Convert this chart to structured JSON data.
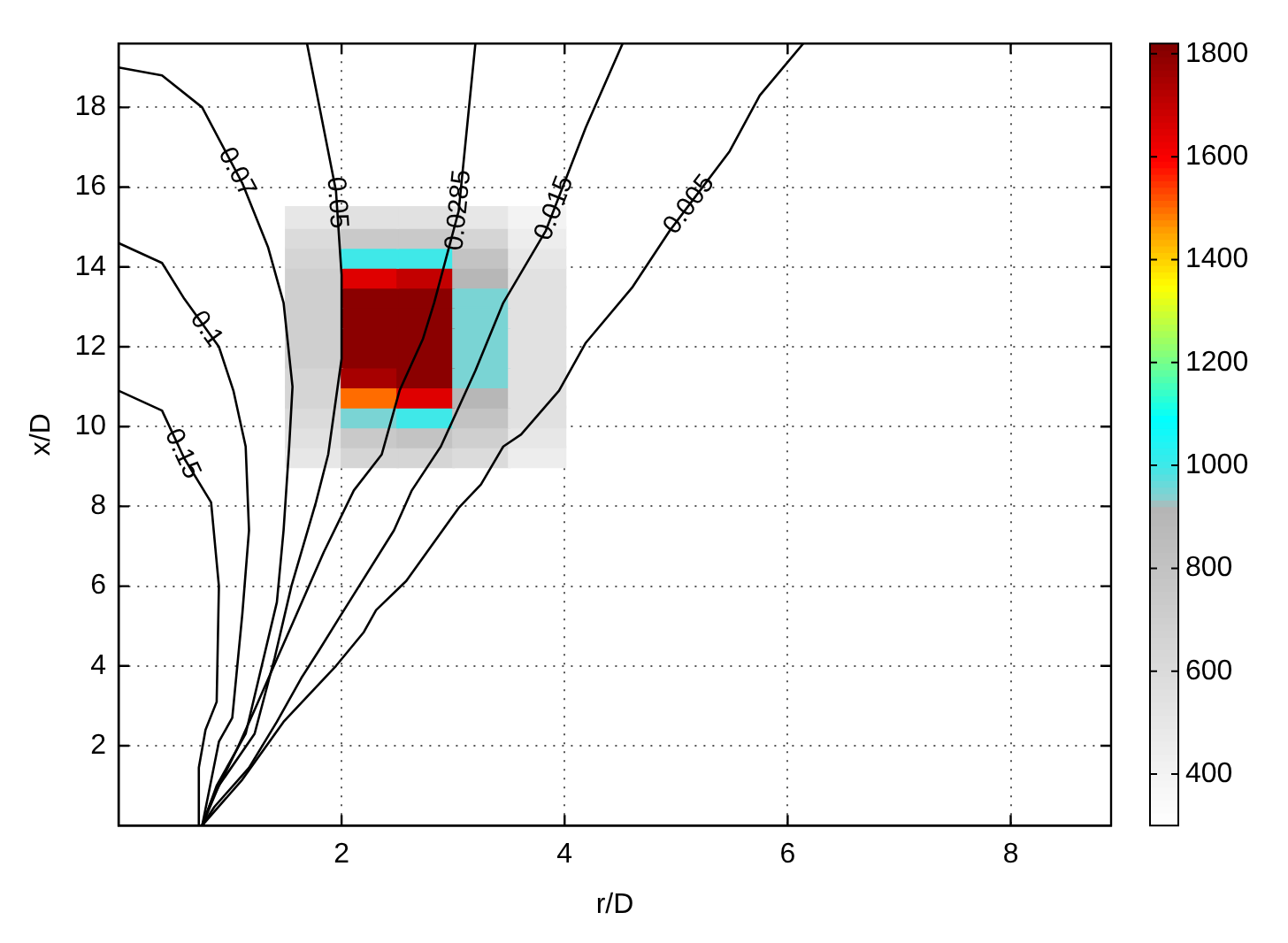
{
  "chart_data": {
    "type": "line",
    "xlabel": "r/D",
    "ylabel": "x/D",
    "xlim": [
      0,
      8.9
    ],
    "xticks": [
      2,
      4,
      6,
      8
    ],
    "ylim": [
      0,
      19.6
    ],
    "yticks": [
      2,
      4,
      6,
      8,
      10,
      12,
      14,
      16,
      18
    ],
    "clim": [
      300,
      1820
    ],
    "cticks": [
      400,
      600,
      800,
      1000,
      1200,
      1400,
      1600,
      1800
    ],
    "grid": true,
    "line_style": "solid",
    "marker": "none",
    "series": [
      {
        "type": "scatter",
        "marker": "square",
        "x": [
          1.75,
          2.25,
          2.75,
          3.25,
          3.75,
          1.75,
          2.25,
          2.75,
          3.25,
          3.75,
          1.75,
          2.25,
          2.75,
          3.25,
          3.75,
          1.75,
          2.25,
          2.75,
          3.25,
          3.75,
          1.75,
          2.25,
          2.75,
          3.25,
          3.75,
          1.75,
          2.25,
          2.75,
          3.25,
          3.75,
          1.75,
          2.25,
          2.75,
          3.25,
          3.75,
          1.75,
          2.25,
          2.75,
          3.25,
          3.75,
          1.75,
          2.25,
          2.75,
          3.25,
          3.75,
          1.75,
          2.25,
          2.75,
          3.25,
          3.75,
          1.75,
          2.25,
          2.75,
          3.25,
          3.75,
          1.75,
          2.25,
          2.75,
          3.25,
          3.75,
          1.75,
          2.25,
          2.75,
          3.25,
          3.75
        ],
        "values": [
          9.25,
          9.25,
          9.25,
          9.25,
          9.25,
          9.75,
          9.75,
          9.75,
          9.75,
          9.75,
          10.25,
          10.25,
          10.25,
          10.25,
          10.25,
          10.75,
          10.75,
          10.75,
          10.75,
          10.75,
          11.25,
          11.25,
          11.25,
          11.25,
          11.25,
          11.75,
          11.75,
          11.75,
          11.75,
          11.75,
          12.25,
          12.25,
          12.25,
          12.25,
          12.25,
          12.75,
          12.75,
          12.75,
          12.75,
          12.75,
          13.25,
          13.25,
          13.25,
          13.25,
          13.25,
          13.75,
          13.75,
          13.75,
          13.75,
          13.75,
          14.25,
          14.25,
          14.25,
          14.25,
          14.25,
          14.75,
          14.75,
          14.75,
          14.75,
          14.75,
          15.25,
          15.25,
          15.25,
          15.25,
          15.25
        ],
        "colors": [
          "#e7e7e7",
          "#d5d5d5",
          "#d5d5d5",
          "#dbdbdb",
          "#ededed",
          "#e1e1e1",
          "#c9c9c9",
          "#c3c3c3",
          "#cfcfcf",
          "#e7e7e7",
          "#dbdbdb",
          "#7ad4d4",
          "#3fe8e8",
          "#c3c3c3",
          "#e1e1e1",
          "#d5d5d5",
          "#ff6c00",
          "#df0000",
          "#b7b7b7",
          "#e1e1e1",
          "#d5d5d5",
          "#a70000",
          "#8b0000",
          "#7ad4d4",
          "#e1e1e1",
          "#cfcfcf",
          "#8b0000",
          "#8b0000",
          "#7ad4d4",
          "#e1e1e1",
          "#cfcfcf",
          "#8b0000",
          "#8b0000",
          "#7ad4d4",
          "#e1e1e1",
          "#cfcfcf",
          "#8b0000",
          "#8b0000",
          "#7ad4d4",
          "#e1e1e1",
          "#cfcfcf",
          "#8b0000",
          "#8b0000",
          "#7ad4d4",
          "#e1e1e1",
          "#cfcfcf",
          "#df0000",
          "#c30000",
          "#b7b7b7",
          "#e1e1e1",
          "#d5d5d5",
          "#3fe8e8",
          "#3fe8e8",
          "#c3c3c3",
          "#e7e7e7",
          "#dbdbdb",
          "#c9c9c9",
          "#c9c9c9",
          "#d5d5d5",
          "#ededed",
          "#e7e7e7",
          "#e1e1e1",
          "#e1e1e1",
          "#e7e7e7",
          "#f3f3f3"
        ],
        "cvalues": [
          500,
          650,
          650,
          600,
          450,
          550,
          750,
          800,
          700,
          500,
          600,
          950,
          1000,
          800,
          550,
          650,
          1500,
          1650,
          900,
          550,
          650,
          1750,
          1800,
          950,
          550,
          700,
          1800,
          1800,
          950,
          550,
          700,
          1800,
          1800,
          950,
          550,
          700,
          1800,
          1800,
          950,
          550,
          700,
          1800,
          1800,
          950,
          550,
          700,
          1650,
          1700,
          900,
          550,
          650,
          1000,
          1000,
          800,
          500,
          600,
          750,
          750,
          650,
          450,
          500,
          550,
          550,
          500,
          400
        ]
      },
      {
        "name": "0.15",
        "color": "#000000",
        "x": [
          0,
          0.39,
          0.59,
          0.83,
          0.9,
          0.88,
          0.78,
          0.72,
          0.72
        ],
        "values": [
          10.9,
          10.4,
          9.2,
          8.1,
          6.0,
          3.1,
          2.4,
          1.45,
          0
        ]
      },
      {
        "name": "0.1",
        "color": "#000000",
        "x": [
          0,
          0.39,
          0.59,
          0.9,
          1.03,
          1.14,
          1.17,
          1.11,
          1.02,
          0.9,
          0.75
        ],
        "values": [
          14.6,
          14.1,
          13.2,
          12.0,
          10.9,
          9.5,
          7.4,
          5.3,
          2.7,
          2.1,
          0
        ]
      },
      {
        "name": "0.07",
        "color": "#000000",
        "x": [
          0,
          0.39,
          0.75,
          1.11,
          1.34,
          1.48,
          1.56,
          1.53,
          1.48,
          1.42,
          1.14,
          0.88,
          0.75
        ],
        "values": [
          19.0,
          18.8,
          18.0,
          16.1,
          14.5,
          13.1,
          11.0,
          9.5,
          7.4,
          5.6,
          2.3,
          1.0,
          0
        ]
      },
      {
        "name": "0.05",
        "color": "#000000",
        "x": [
          1.69,
          1.95,
          2.0,
          2.0,
          1.88,
          1.77,
          1.55,
          1.4,
          1.22,
          0.9,
          0.75
        ],
        "values": [
          19.6,
          15.9,
          13.8,
          11.7,
          9.3,
          8.1,
          6.0,
          4.2,
          2.3,
          1.0,
          0
        ]
      },
      {
        "name": "0.0285",
        "color": "#000000",
        "x": [
          3.2,
          3.05,
          2.83,
          2.73,
          2.52,
          2.36,
          2.11,
          1.84,
          1.55,
          1.22,
          1.06,
          0.83,
          0.75
        ],
        "values": [
          19.6,
          15.4,
          13.1,
          12.2,
          10.9,
          9.3,
          8.4,
          6.85,
          5.0,
          2.9,
          1.9,
          0.6,
          0
        ]
      },
      {
        "name": "0.015",
        "color": "#000000",
        "x": [
          4.52,
          4.19,
          3.83,
          3.45,
          3.2,
          2.89,
          2.63,
          2.47,
          2.0,
          1.8,
          1.64,
          1.42,
          1.17,
          0.86,
          0.75
        ],
        "values": [
          19.6,
          17.5,
          14.9,
          13.1,
          11.4,
          9.5,
          8.4,
          7.4,
          5.3,
          4.4,
          3.7,
          2.6,
          1.45,
          0.47,
          0
        ]
      },
      {
        "name": "0.005",
        "color": "#000000",
        "x": [
          6.14,
          5.75,
          5.48,
          4.94,
          4.61,
          4.19,
          3.95,
          3.61,
          3.45,
          3.25,
          3.05,
          2.58,
          2.31,
          2.2,
          1.95,
          1.48,
          1.11,
          0.75
        ],
        "values": [
          19.6,
          18.3,
          16.9,
          14.9,
          13.5,
          12.1,
          10.9,
          9.8,
          9.5,
          8.55,
          7.96,
          6.13,
          5.4,
          4.85,
          4.0,
          2.6,
          1.15,
          0
        ]
      }
    ]
  }
}
